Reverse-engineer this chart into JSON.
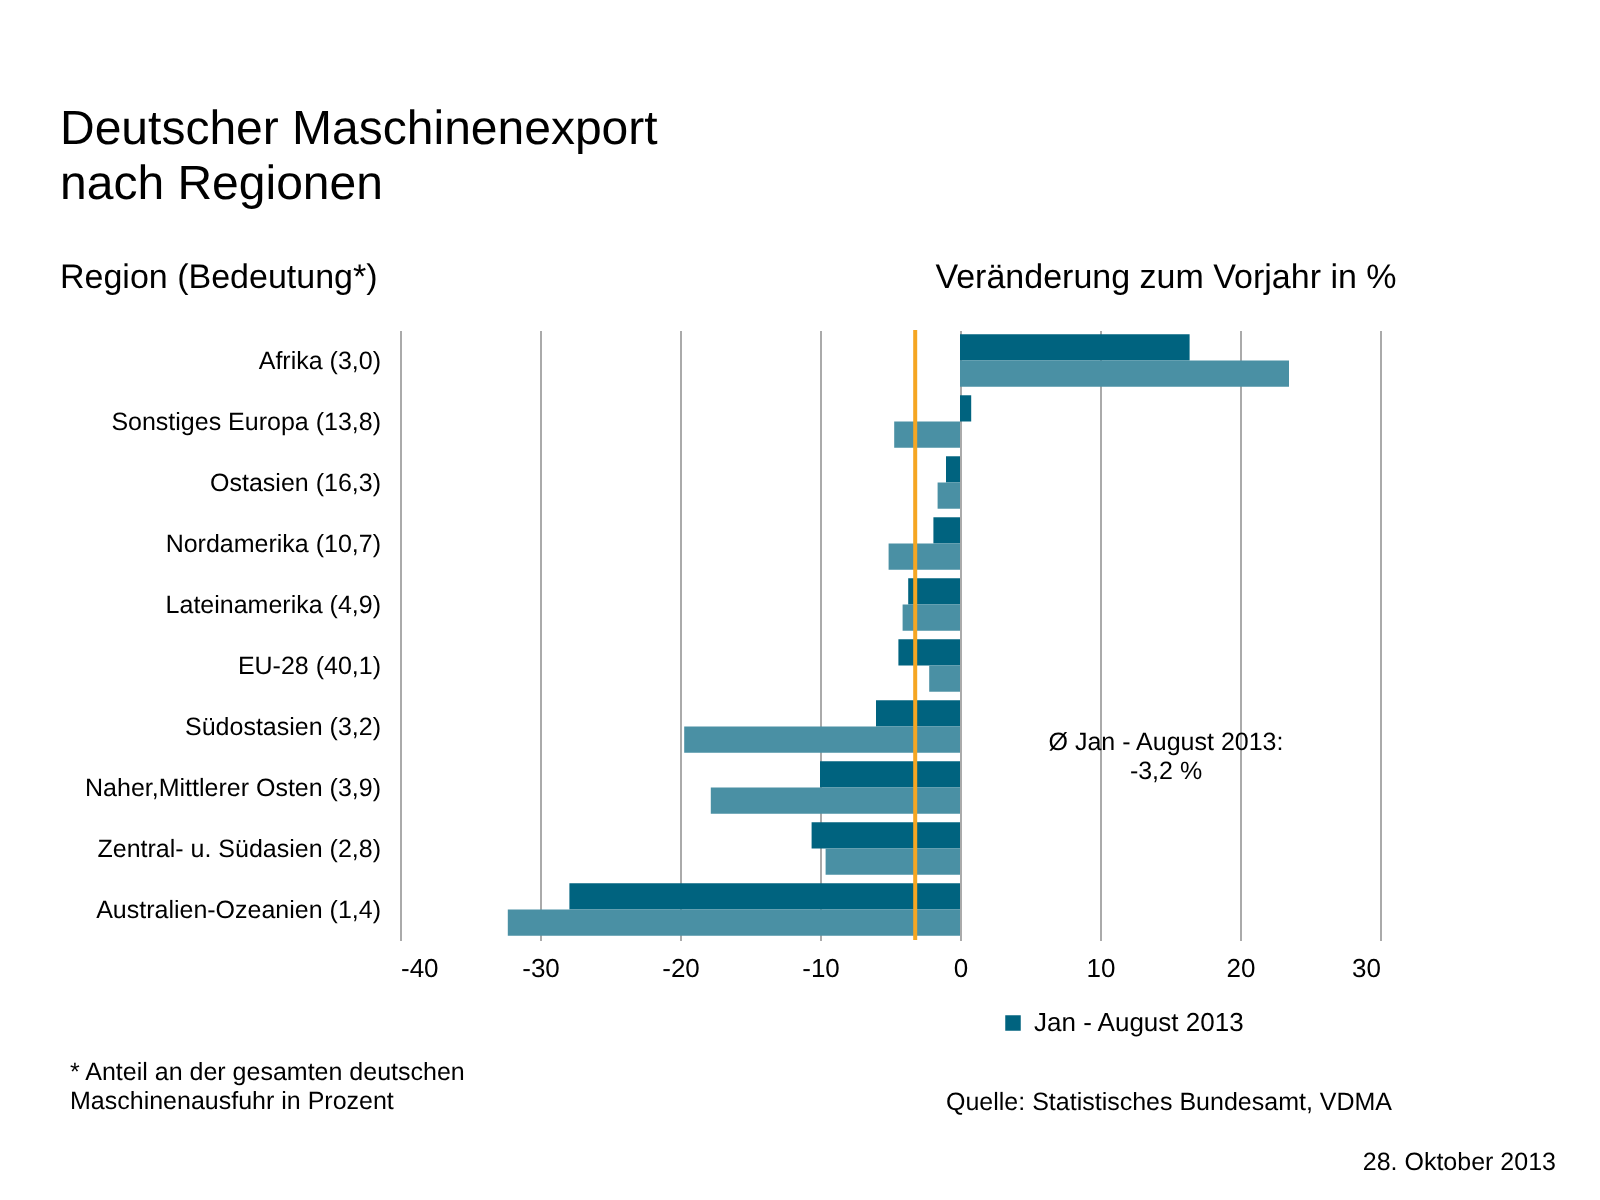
{
  "chart_data": {
    "type": "bar",
    "orientation": "horizontal",
    "title": "Deutscher Maschinenexport\nnach Regionen",
    "ylabel": "Region (Bedeutung*)",
    "xlabel": "Veränderung zum Vorjahr in %",
    "categories": [
      "Afrika  (3,0)",
      "Sonstiges Europa  (13,8)",
      "Ostasien  (16,3)",
      "Nordamerika  (10,7)",
      "Lateinamerika  (4,9)",
      "EU-28  (40,1)",
      "Südostasien  (3,2)",
      "Naher,Mittlerer Osten  (3,9)",
      "Zentral- u. Südasien  (2,8)",
      "Australien-Ozeanien  (1,4)"
    ],
    "series": [
      {
        "name": "Jan - August 2013",
        "color": "#00637f",
        "values": [
          16.4,
          0.8,
          -1.0,
          -1.9,
          -3.7,
          -4.4,
          -6.0,
          -10.0,
          -10.6,
          -27.9
        ]
      },
      {
        "color": "#4a90a4",
        "values": [
          23.5,
          -4.7,
          -1.6,
          -5.1,
          -4.1,
          -2.2,
          -19.7,
          -17.8,
          -9.6,
          -32.3
        ]
      }
    ],
    "xlim": [
      -40,
      30
    ],
    "xticks": [
      -40,
      -30,
      -20,
      -10,
      0,
      10,
      20,
      30
    ],
    "grid": "x",
    "legend": "bottom",
    "ref_lines": [
      {
        "axis": "x",
        "value": -3.2,
        "color": "#f5a623"
      }
    ],
    "annotations": [
      "Ø Jan - August 2013:\n-3,2 %",
      "* Anteil an der gesamten deutschen\n  Maschinenausfuhr in Prozent",
      "Quelle: Statistisches Bundesamt, VDMA",
      "28. Oktober 2013"
    ]
  }
}
